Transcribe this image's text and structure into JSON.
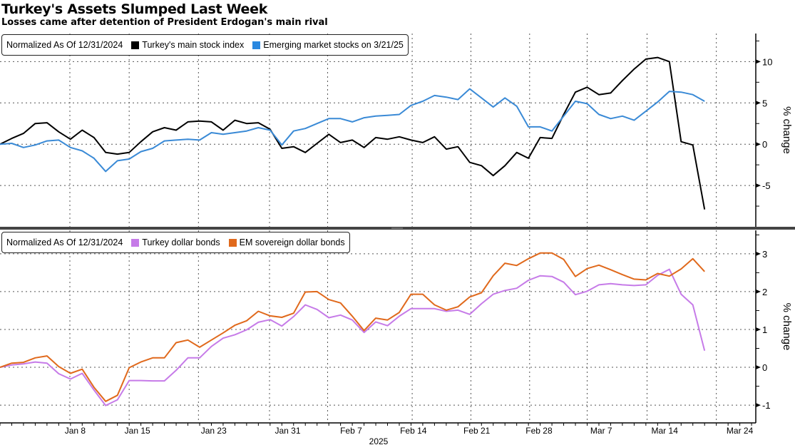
{
  "title": "Turkey's Assets Slumped Last Week",
  "subtitle": "Losses came after detention of President Erdogan's main rival",
  "chart_data": [
    {
      "type": "line",
      "panel": "top",
      "legend_note": "Normalized As Of 12/31/2024",
      "ylabel": "% change",
      "ylim": [
        -10,
        13.4
      ],
      "yticks": [
        10,
        5,
        0,
        -5
      ],
      "grid": true,
      "legend_placement": "top-left",
      "series": [
        {
          "name": "Turkey's main stock index",
          "color": "#000000",
          "values": [
            0,
            0.7,
            1.3,
            2.5,
            2.6,
            1.5,
            0.6,
            1.7,
            0.8,
            -1.0,
            -1.2,
            -1.0,
            0.3,
            1.5,
            2.0,
            1.7,
            2.7,
            2.8,
            2.7,
            1.7,
            2.9,
            2.5,
            2.6,
            1.8,
            -0.5,
            -0.3,
            -1.0,
            0.1,
            1.2,
            0.2,
            0.5,
            -0.4,
            0.8,
            0.6,
            0.9,
            0.5,
            0.2,
            0.9,
            -0.6,
            -0.3,
            -2.2,
            -2.6,
            -3.8,
            -2.6,
            -1.0,
            -1.7,
            0.8,
            0.7,
            3.6,
            6.3,
            6.9,
            6.0,
            6.2,
            7.7,
            9.1,
            10.3,
            10.5,
            10.0,
            0.3,
            -0.1,
            -7.9
          ]
        },
        {
          "name": "Emerging market stocks on 3/21/25",
          "color": "#3a8ad6",
          "values": [
            0,
            0.1,
            -0.4,
            -0.1,
            0.4,
            0.5,
            -0.4,
            -0.8,
            -1.7,
            -3.3,
            -2.0,
            -1.8,
            -0.9,
            -0.5,
            0.4,
            0.5,
            0.6,
            0.5,
            1.4,
            1.2,
            1.4,
            1.6,
            2.0,
            1.7,
            -0.1,
            1.6,
            1.9,
            2.5,
            3.1,
            3.1,
            2.7,
            3.2,
            3.4,
            3.5,
            3.6,
            4.7,
            5.2,
            5.9,
            5.7,
            5.4,
            6.7,
            5.6,
            4.5,
            5.6,
            4.6,
            2.1,
            2.1,
            1.6,
            3.4,
            5.2,
            4.9,
            3.6,
            3.1,
            3.4,
            2.9,
            4.0,
            5.1,
            6.4,
            6.3,
            6.0,
            5.2
          ]
        }
      ]
    },
    {
      "type": "line",
      "panel": "bottom",
      "legend_note": "Normalized As Of 12/31/2024",
      "ylabel": "% change",
      "ylim": [
        -1.47,
        3.62
      ],
      "yticks": [
        3,
        2,
        1,
        0,
        -1
      ],
      "grid": true,
      "legend_placement": "top-left",
      "series": [
        {
          "name": "Turkey dollar bonds",
          "color": "#c67be8",
          "values": [
            0,
            0.06,
            0.09,
            0.14,
            0.11,
            -0.17,
            -0.31,
            -0.16,
            -0.6,
            -1.01,
            -0.86,
            -0.35,
            -0.35,
            -0.36,
            -0.36,
            -0.08,
            0.25,
            0.25,
            0.55,
            0.77,
            0.86,
            0.99,
            1.19,
            1.26,
            1.09,
            1.34,
            1.65,
            1.53,
            1.31,
            1.38,
            1.25,
            0.92,
            1.2,
            1.1,
            1.35,
            1.55,
            1.55,
            1.55,
            1.48,
            1.51,
            1.4,
            1.68,
            1.93,
            2.03,
            2.09,
            2.3,
            2.42,
            2.4,
            2.25,
            1.92,
            2.01,
            2.18,
            2.21,
            2.18,
            2.16,
            2.18,
            2.43,
            2.59,
            1.93,
            1.65,
            0.44
          ]
        },
        {
          "name": "EM sovereign dollar bonds",
          "color": "#e0691c",
          "values": [
            0,
            0.11,
            0.13,
            0.25,
            0.3,
            0.02,
            -0.16,
            -0.05,
            -0.53,
            -0.9,
            -0.74,
            -0.01,
            0.14,
            0.25,
            0.25,
            0.65,
            0.72,
            0.53,
            0.72,
            0.91,
            1.11,
            1.23,
            1.48,
            1.36,
            1.32,
            1.43,
            1.99,
            2.0,
            1.79,
            1.7,
            1.35,
            0.97,
            1.3,
            1.25,
            1.45,
            1.93,
            1.93,
            1.65,
            1.51,
            1.6,
            1.86,
            1.97,
            2.42,
            2.75,
            2.69,
            2.87,
            3.02,
            3.02,
            2.85,
            2.4,
            2.61,
            2.7,
            2.58,
            2.45,
            2.33,
            2.31,
            2.48,
            2.41,
            2.6,
            2.87,
            2.53
          ]
        }
      ]
    }
  ],
  "x_axis": {
    "unit": "trading-day index from 12/31/2024",
    "xlim": [
      0,
      64.4
    ],
    "tick_labels": [
      "Jan 8",
      "Jan 15",
      "Jan 23",
      "Jan 31",
      "Feb 7",
      "Feb 14",
      "Feb 21",
      "Feb 28",
      "Mar 7",
      "Mar 14",
      "Mar 24"
    ],
    "tick_positions": [
      6.4,
      11.7,
      18.2,
      24.5,
      29.9,
      35.2,
      40.6,
      45.9,
      51.2,
      56.6,
      63.0
    ],
    "gridline_positions": [
      5.95,
      11.0,
      16.9,
      22.95,
      27.9,
      35.1,
      40.1,
      45.1,
      50.0,
      55.1,
      61.0
    ],
    "year_label": "2025"
  }
}
